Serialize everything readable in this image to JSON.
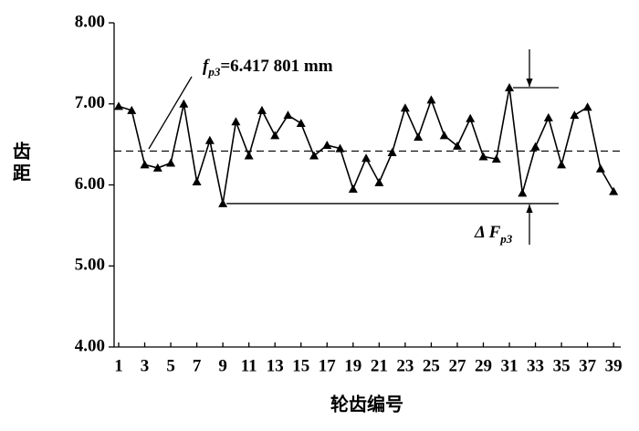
{
  "chart_data": {
    "type": "line",
    "x": [
      1,
      2,
      3,
      4,
      5,
      6,
      7,
      8,
      9,
      10,
      11,
      12,
      13,
      14,
      15,
      16,
      17,
      18,
      19,
      20,
      21,
      22,
      23,
      24,
      25,
      26,
      27,
      28,
      29,
      30,
      31,
      32,
      33,
      34,
      35,
      36,
      37,
      38,
      39
    ],
    "series": [
      {
        "color": "#000000",
        "values": [
          6.97,
          6.92,
          6.25,
          6.21,
          6.27,
          7.0,
          6.04,
          6.55,
          5.77,
          6.78,
          6.36,
          6.92,
          6.61,
          6.86,
          6.76,
          6.36,
          6.49,
          6.45,
          5.95,
          6.33,
          6.03,
          6.4,
          6.95,
          6.59,
          7.05,
          6.61,
          6.48,
          6.82,
          6.35,
          6.32,
          7.2,
          5.9,
          6.47,
          6.83,
          6.25,
          6.86,
          6.96,
          6.2,
          5.92
        ]
      }
    ],
    "xlim": [
      0.65,
      39.55
    ],
    "xticks": [
      1,
      3,
      5,
      7,
      9,
      11,
      13,
      15,
      17,
      19,
      21,
      23,
      25,
      27,
      29,
      31,
      33,
      35,
      37,
      39
    ],
    "ylim": [
      4,
      8
    ],
    "yticks": [
      {
        "value": 4,
        "label": "4.00"
      },
      {
        "value": 5,
        "label": "5.00"
      },
      {
        "value": 6,
        "label": "6.00"
      },
      {
        "value": 7,
        "label": "7.00"
      },
      {
        "value": 8,
        "label": "8.00"
      }
    ],
    "xlabel": "轮齿编号",
    "ylabel": "齿距",
    "reference_line": 6.417801,
    "annotations": [
      {
        "symbol": "f",
        "subscript": "p3",
        "text": "=6.417 801 mm"
      },
      {
        "symbol": "Δ F",
        "subscript": "p3"
      }
    ]
  }
}
